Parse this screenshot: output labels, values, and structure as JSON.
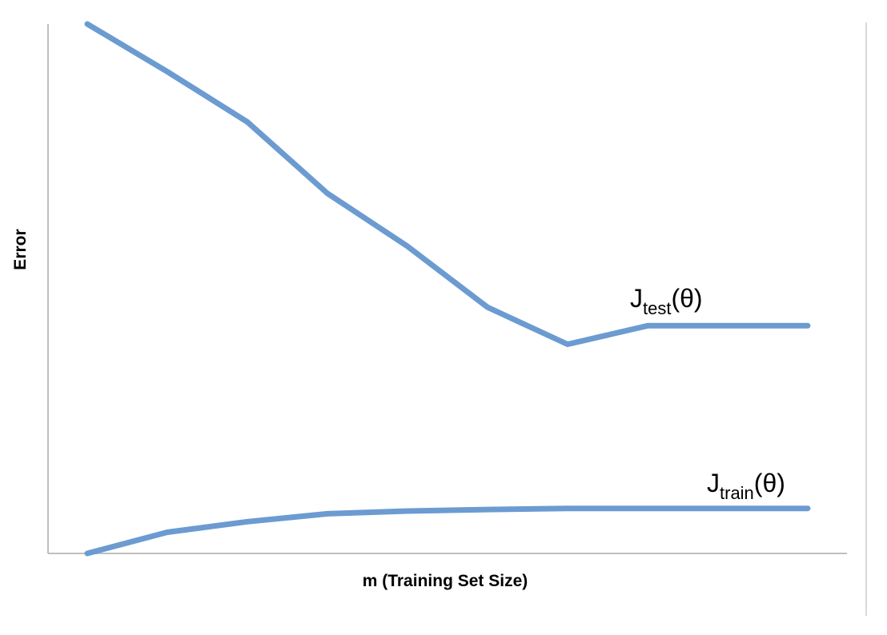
{
  "chart_data": {
    "type": "line",
    "xlabel": "m (Training Set Size)",
    "ylabel": "Error",
    "x": [
      1,
      2,
      3,
      4,
      5,
      6,
      7,
      8,
      9,
      10
    ],
    "xlim": [
      0.5,
      10.5
    ],
    "ylim": [
      0,
      100
    ],
    "grid": false,
    "line_color": "#6b9bd1",
    "series": [
      {
        "name": "test",
        "label_main": "J",
        "label_sub": "test",
        "label_suffix": "(θ)",
        "values": [
          100,
          91,
          81.5,
          68,
          58,
          46.5,
          39.5,
          43,
          43,
          43
        ]
      },
      {
        "name": "train",
        "label_main": "J",
        "label_sub": "train",
        "label_suffix": "(θ)",
        "values": [
          0,
          4,
          6,
          7.5,
          8,
          8.3,
          8.5,
          8.5,
          8.5,
          8.5
        ]
      }
    ]
  }
}
